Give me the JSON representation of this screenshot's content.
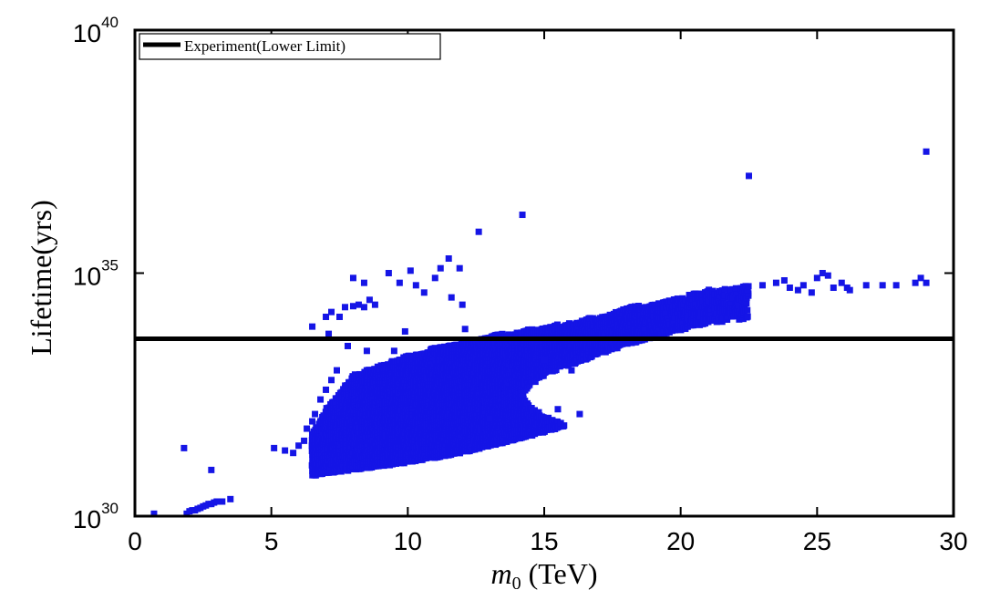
{
  "chart_data": {
    "type": "scatter",
    "title": "",
    "xlabel": "m0 (TeV)",
    "xlabel_base": "m",
    "xlabel_sub": "0",
    "xlabel_unit": "(TeV)",
    "ylabel": "Lifetime(yrs)",
    "xlim": [
      0,
      30
    ],
    "ylim_log10": [
      30,
      40
    ],
    "yscale": "log",
    "x_ticks": [
      "0",
      "5",
      "10",
      "15",
      "20",
      "25",
      "30"
    ],
    "y_ticks": [
      {
        "base": "10",
        "exp": "30"
      },
      {
        "base": "10",
        "exp": "35"
      },
      {
        "base": "10",
        "exp": "40"
      }
    ],
    "grid": false,
    "legend": {
      "position": "top-left",
      "entries": [
        "Experiment(Lower Limit)"
      ]
    },
    "experiment_limit_log10": 33.65,
    "series": [
      {
        "name": "scan points",
        "color": "#1515e6",
        "marker": "square",
        "dense_region": {
          "x_min": 6.5,
          "x_max": 15.8,
          "lower_bound": [
            [
              6.5,
              30.85
            ],
            [
              8,
              30.97
            ],
            [
              10,
              31.12
            ],
            [
              12,
              31.32
            ],
            [
              14,
              31.6
            ],
            [
              15.5,
              31.82
            ],
            [
              15.8,
              31.9
            ]
          ],
          "upper_bound": [
            [
              6.5,
              31.7
            ],
            [
              7,
              32.2
            ],
            [
              8,
              32.9
            ],
            [
              9,
              33.1
            ],
            [
              10,
              33.3
            ],
            [
              11,
              33.45
            ],
            [
              12,
              33.58
            ],
            [
              13,
              33.7
            ],
            [
              14,
              33.8
            ],
            [
              15,
              33.88
            ],
            [
              15.8,
              33.95
            ]
          ],
          "inner_gap": [
            [
              15.8,
              31.9
            ],
            [
              15,
              32.05
            ],
            [
              14.5,
              32.25
            ],
            [
              14.2,
              32.5
            ],
            [
              14.6,
              32.75
            ],
            [
              15.2,
              32.95
            ],
            [
              15.8,
              33.1
            ]
          ]
        },
        "arm_region": {
          "lower": [
            [
              15.8,
              33.1
            ],
            [
              17,
              33.35
            ],
            [
              18,
              33.55
            ],
            [
              19,
              33.7
            ],
            [
              20,
              33.85
            ],
            [
              21,
              34.0
            ],
            [
              22,
              34.05
            ],
            [
              22.5,
              34.1
            ]
          ],
          "upper": [
            [
              15.8,
              33.95
            ],
            [
              17,
              34.1
            ],
            [
              18,
              34.25
            ],
            [
              19,
              34.4
            ],
            [
              20,
              34.55
            ],
            [
              21,
              34.65
            ],
            [
              22,
              34.72
            ],
            [
              22.5,
              34.75
            ]
          ]
        },
        "points": [
          [
            0.7,
            30.05
          ],
          [
            1.9,
            30.05
          ],
          [
            2.0,
            30.1
          ],
          [
            2.1,
            30.12
          ],
          [
            2.2,
            30.12
          ],
          [
            2.3,
            30.15
          ],
          [
            2.4,
            30.17
          ],
          [
            2.5,
            30.2
          ],
          [
            2.6,
            30.22
          ],
          [
            2.7,
            30.25
          ],
          [
            2.8,
            30.25
          ],
          [
            2.9,
            30.28
          ],
          [
            3.0,
            30.3
          ],
          [
            3.2,
            30.3
          ],
          [
            3.5,
            30.35
          ],
          [
            1.8,
            31.4
          ],
          [
            2.8,
            30.95
          ],
          [
            5.1,
            31.4
          ],
          [
            5.5,
            31.35
          ],
          [
            5.8,
            31.3
          ],
          [
            6.0,
            31.45
          ],
          [
            6.2,
            31.55
          ],
          [
            6.3,
            31.8
          ],
          [
            6.5,
            31.95
          ],
          [
            6.6,
            32.1
          ],
          [
            6.8,
            32.4
          ],
          [
            7.0,
            32.6
          ],
          [
            7.2,
            32.8
          ],
          [
            7.4,
            33.0
          ],
          [
            6.5,
            33.9
          ],
          [
            7.0,
            34.1
          ],
          [
            7.2,
            34.2
          ],
          [
            7.5,
            34.1
          ],
          [
            7.7,
            34.3
          ],
          [
            8.0,
            34.32
          ],
          [
            8.2,
            34.35
          ],
          [
            8.4,
            34.3
          ],
          [
            8.6,
            34.45
          ],
          [
            8.8,
            34.35
          ],
          [
            7.1,
            33.75
          ],
          [
            7.8,
            33.5
          ],
          [
            9.9,
            33.8
          ],
          [
            8.0,
            34.9
          ],
          [
            8.4,
            34.8
          ],
          [
            9.3,
            35.0
          ],
          [
            9.7,
            34.8
          ],
          [
            10.1,
            35.05
          ],
          [
            10.3,
            34.75
          ],
          [
            10.6,
            34.6
          ],
          [
            11.0,
            34.9
          ],
          [
            11.5,
            35.3
          ],
          [
            11.6,
            34.5
          ],
          [
            11.2,
            35.1
          ],
          [
            11.9,
            35.1
          ],
          [
            12.0,
            34.35
          ],
          [
            12.6,
            35.85
          ],
          [
            14.2,
            36.2
          ],
          [
            12.1,
            33.85
          ],
          [
            22.5,
            37.0
          ],
          [
            29.0,
            37.5
          ],
          [
            23.0,
            34.75
          ],
          [
            23.5,
            34.8
          ],
          [
            23.8,
            34.85
          ],
          [
            24.0,
            34.7
          ],
          [
            24.3,
            34.65
          ],
          [
            24.5,
            34.75
          ],
          [
            24.8,
            34.6
          ],
          [
            25.0,
            34.9
          ],
          [
            25.2,
            35.0
          ],
          [
            25.4,
            34.95
          ],
          [
            25.6,
            34.7
          ],
          [
            25.9,
            34.8
          ],
          [
            26.1,
            34.7
          ],
          [
            26.8,
            34.75
          ],
          [
            27.4,
            34.75
          ],
          [
            27.9,
            34.75
          ],
          [
            28.6,
            34.8
          ],
          [
            28.8,
            34.9
          ],
          [
            29.0,
            34.8
          ],
          [
            26.2,
            34.65
          ],
          [
            16.3,
            32.1
          ],
          [
            15.5,
            32.2
          ],
          [
            15.0,
            33.2
          ],
          [
            16.0,
            33.0
          ],
          [
            13.0,
            32.0
          ],
          [
            9.5,
            33.4
          ],
          [
            8.5,
            33.4
          ]
        ]
      }
    ]
  }
}
